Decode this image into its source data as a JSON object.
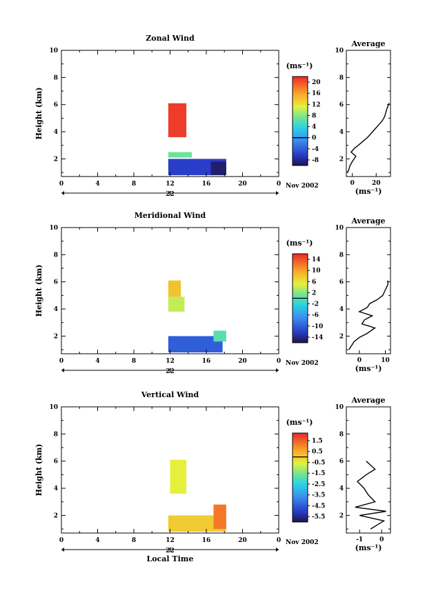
{
  "chart_data": [
    {
      "type": "heatmap",
      "title": "Zonal Wind",
      "ylabel": "Height (km)",
      "xlabel": "",
      "xlim": [
        0,
        24
      ],
      "ylim": [
        0.7,
        10
      ],
      "xticks": [
        "0",
        "4",
        "8",
        "12",
        "16",
        "20",
        "0"
      ],
      "yticks": [
        "2",
        "4",
        "6",
        "8",
        "10"
      ],
      "date_label": "22",
      "month_label": "Nov 2002",
      "colorbar": {
        "unit": "(ms⁻¹)",
        "ticks": [
          "20",
          "16",
          "12",
          "8",
          "4",
          "0",
          "-4",
          "-8"
        ],
        "values": [
          20,
          16,
          12,
          8,
          4,
          0,
          -4,
          -8
        ],
        "range": [
          -10,
          22
        ]
      },
      "regions": [
        {
          "x": [
            11.8,
            13.8
          ],
          "y": [
            3.6,
            6.1
          ],
          "value": 21,
          "note": "upper red band"
        },
        {
          "x": [
            11.8,
            14.4
          ],
          "y": [
            2.1,
            2.5
          ],
          "value": 7
        },
        {
          "x": [
            11.8,
            18.2
          ],
          "y": [
            0.8,
            2.0
          ],
          "value": -6
        },
        {
          "x": [
            16.5,
            18.2
          ],
          "y": [
            0.8,
            1.8
          ],
          "value": -9
        }
      ],
      "average": {
        "title": "Average",
        "xticks": [
          "0",
          "20"
        ],
        "xlim": [
          -5,
          32
        ],
        "xlabel": "(ms⁻¹)",
        "x": [
          -4,
          -3,
          -2,
          0,
          3,
          -1,
          2,
          5,
          9,
          13,
          16,
          19,
          22,
          25,
          27,
          28,
          29,
          30,
          30,
          31
        ],
        "y": [
          1.0,
          1.2,
          1.5,
          1.8,
          2.2,
          2.5,
          2.8,
          3.0,
          3.3,
          3.6,
          3.9,
          4.2,
          4.5,
          4.8,
          5.1,
          5.4,
          5.7,
          5.9,
          6.0,
          6.1
        ]
      }
    },
    {
      "type": "heatmap",
      "title": "Meridional Wind",
      "ylabel": "Height (km)",
      "xlabel": "",
      "xlim": [
        0,
        24
      ],
      "ylim": [
        0.7,
        10
      ],
      "xticks": [
        "0",
        "4",
        "8",
        "12",
        "16",
        "20",
        "0"
      ],
      "yticks": [
        "2",
        "4",
        "6",
        "8",
        "10"
      ],
      "date_label": "22",
      "month_label": "Nov 2002",
      "colorbar": {
        "unit": "(ms⁻¹)",
        "ticks": [
          "14",
          "10",
          "6",
          "2",
          "-2",
          "-6",
          "-10",
          "-14"
        ],
        "values": [
          14,
          10,
          6,
          2,
          -2,
          -6,
          -10,
          -14
        ],
        "range": [
          -16,
          16
        ]
      },
      "regions": [
        {
          "x": [
            11.8,
            13.2
          ],
          "y": [
            4.9,
            6.1
          ],
          "value": 8
        },
        {
          "x": [
            11.8,
            13.6
          ],
          "y": [
            3.8,
            4.9
          ],
          "value": 4
        },
        {
          "x": [
            11.8,
            17.8
          ],
          "y": [
            0.8,
            2.0
          ],
          "value": -10
        },
        {
          "x": [
            16.8,
            18.2
          ],
          "y": [
            1.6,
            2.4
          ],
          "value": 0
        }
      ],
      "average": {
        "title": "Average",
        "xticks": [
          "0",
          "10"
        ],
        "xlim": [
          -5,
          12
        ],
        "xlabel": "(ms⁻¹)",
        "x": [
          -4,
          -3,
          -2,
          0,
          3,
          6,
          1,
          2,
          5,
          0,
          3,
          4,
          7,
          9,
          10,
          11,
          11,
          11
        ],
        "y": [
          1.0,
          1.3,
          1.6,
          1.9,
          2.2,
          2.6,
          2.9,
          3.2,
          3.5,
          3.8,
          4.1,
          4.4,
          4.7,
          5.0,
          5.4,
          5.8,
          6.0,
          6.1
        ]
      }
    },
    {
      "type": "heatmap",
      "title": "Vertical Wind",
      "ylabel": "Height (km)",
      "xlabel": "Local Time",
      "xlim": [
        0,
        24
      ],
      "ylim": [
        0.7,
        10
      ],
      "xticks": [
        "0",
        "4",
        "8",
        "12",
        "16",
        "20",
        "0"
      ],
      "yticks": [
        "2",
        "4",
        "6",
        "8",
        "10"
      ],
      "date_label": "22",
      "month_label": "Nov 2002",
      "colorbar": {
        "unit": "(ms⁻¹)",
        "ticks": [
          "1.5",
          "0.5",
          "-0.5",
          "-1.5",
          "-2.5",
          "-3.5",
          "-4.5",
          "-5.5"
        ],
        "values": [
          1.5,
          0.5,
          -0.5,
          -1.5,
          -2.5,
          -3.5,
          -4.5,
          -5.5
        ],
        "range": [
          -6,
          2.2
        ]
      },
      "regions": [
        {
          "x": [
            12.0,
            13.8
          ],
          "y": [
            3.6,
            6.1
          ],
          "value": -0.6
        },
        {
          "x": [
            11.8,
            18.2
          ],
          "y": [
            0.8,
            2.0
          ],
          "value": 0.0
        },
        {
          "x": [
            16.8,
            18.2
          ],
          "y": [
            1.0,
            2.8
          ],
          "value": 1.2
        }
      ],
      "average": {
        "title": "Average",
        "xticks": [
          "-1",
          "0"
        ],
        "xlim": [
          -1.6,
          0.4
        ],
        "xlabel": "(ms⁻¹)",
        "x": [
          -0.5,
          -0.2,
          0.1,
          -1.0,
          0.2,
          -1.2,
          -0.3,
          -0.6,
          -0.8,
          -1.1,
          -0.7,
          -0.3,
          -0.5,
          -0.7
        ],
        "y": [
          1.0,
          1.3,
          1.6,
          2.0,
          2.3,
          2.6,
          3.0,
          3.5,
          4.0,
          4.5,
          5.0,
          5.4,
          5.7,
          6.0
        ]
      }
    }
  ]
}
